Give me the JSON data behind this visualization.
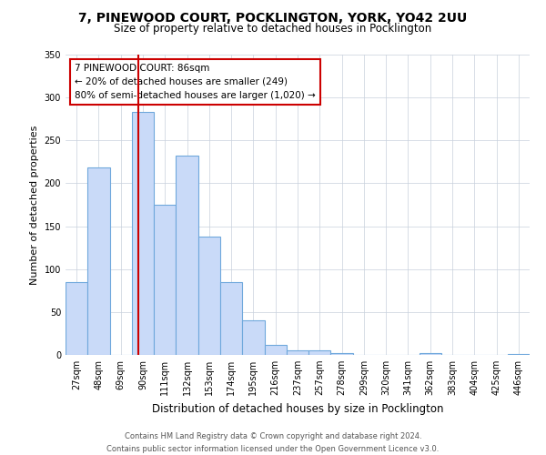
{
  "title_line1": "7, PINEWOOD COURT, POCKLINGTON, YORK, YO42 2UU",
  "title_line2": "Size of property relative to detached houses in Pocklington",
  "xlabel": "Distribution of detached houses by size in Pocklington",
  "ylabel": "Number of detached properties",
  "bar_labels": [
    "27sqm",
    "48sqm",
    "69sqm",
    "90sqm",
    "111sqm",
    "132sqm",
    "153sqm",
    "174sqm",
    "195sqm",
    "216sqm",
    "237sqm",
    "257sqm",
    "278sqm",
    "299sqm",
    "320sqm",
    "341sqm",
    "362sqm",
    "383sqm",
    "404sqm",
    "425sqm",
    "446sqm"
  ],
  "bar_values": [
    85,
    218,
    0,
    283,
    175,
    232,
    138,
    85,
    40,
    12,
    5,
    5,
    2,
    0,
    0,
    0,
    2,
    0,
    0,
    0,
    1
  ],
  "bar_color": "#c9daf8",
  "bar_edge_color": "#6fa8dc",
  "red_line_x": 2.78,
  "ylim": [
    0,
    350
  ],
  "yticks": [
    0,
    50,
    100,
    150,
    200,
    250,
    300,
    350
  ],
  "annotation_title": "7 PINEWOOD COURT: 86sqm",
  "annotation_line2": "← 20% of detached houses are smaller (249)",
  "annotation_line3": "80% of semi-detached houses are larger (1,020) →",
  "annotation_box_color": "#ffffff",
  "annotation_border_color": "#cc0000",
  "footer_line1": "Contains HM Land Registry data © Crown copyright and database right 2024.",
  "footer_line2": "Contains public sector information licensed under the Open Government Licence v3.0.",
  "background_color": "#ffffff",
  "grid_color": "#c8d0dc"
}
